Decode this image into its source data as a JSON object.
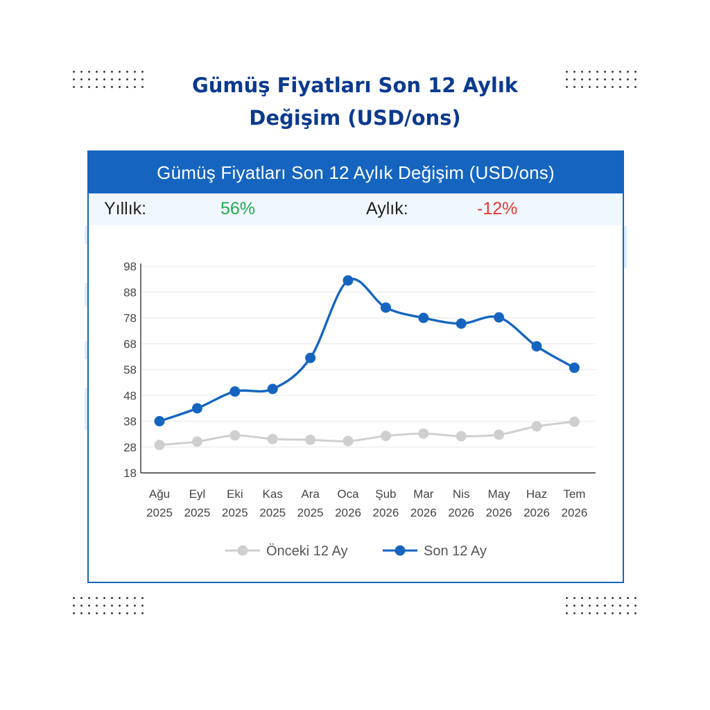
{
  "page": {
    "title_line1": "Gümüş Fiyatları Son 12 Aylık",
    "title_line2": "Değişim (USD/ons)"
  },
  "panel": {
    "header": "Gümüş Fiyatları Son 12 Aylık Değişim (USD/ons)",
    "yearly_label": "Yıllık:",
    "yearly_value": "56%",
    "monthly_label": "Aylık:",
    "monthly_value": "-12%"
  },
  "colors": {
    "brand": "#1565c0",
    "title": "#0b3a8f",
    "positive": "#22a94f",
    "negative": "#e53935",
    "previous_series": "#cfcfcf",
    "current_series": "#1565c0"
  },
  "chart_data": {
    "type": "line",
    "categories": [
      [
        "Ağu",
        "2025"
      ],
      [
        "Eyl",
        "2025"
      ],
      [
        "Eki",
        "2025"
      ],
      [
        "Kas",
        "2025"
      ],
      [
        "Ara",
        "2025"
      ],
      [
        "Oca",
        "2026"
      ],
      [
        "Şub",
        "2026"
      ],
      [
        "Mar",
        "2026"
      ],
      [
        "Nis",
        "2026"
      ],
      [
        "May",
        "2026"
      ],
      [
        "Haz",
        "2026"
      ],
      [
        "Tem",
        "2026"
      ]
    ],
    "series": [
      {
        "name": "Önceki 12 Ay",
        "color": "#cfcfcf",
        "values": [
          28.8,
          30.1,
          32.5,
          31.1,
          30.8,
          30.3,
          32.3,
          33.2,
          32.2,
          32.8,
          36.0,
          37.8
        ]
      },
      {
        "name": "Son 12 Ay",
        "color": "#1565c0",
        "values": [
          38.0,
          43.0,
          49.5,
          50.5,
          62.5,
          92.5,
          82.0,
          78.0,
          75.8,
          78.2,
          67.0,
          58.7
        ]
      }
    ],
    "y_ticks": [
      18,
      28,
      38,
      48,
      58,
      68,
      78,
      88,
      98
    ],
    "ylim": [
      18,
      98
    ],
    "grid": true,
    "legend": "bottom",
    "xlabel": "",
    "ylabel": ""
  }
}
